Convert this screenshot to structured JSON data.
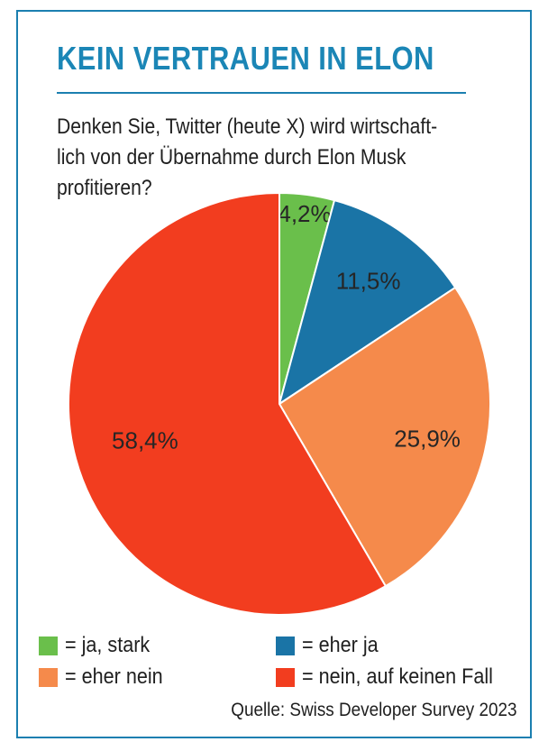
{
  "title": "KEIN VERTRAUEN IN ELON",
  "question": {
    "line1": "Denken Sie, Twitter (heute X) wird wirtschaft-",
    "line2": "lich von der Übernahme durch Elon Musk",
    "line3": "profitieren?"
  },
  "chart_data": {
    "type": "pie",
    "slices": [
      {
        "label": "ja, stark",
        "value": 4.2,
        "value_label": "4,2%",
        "color": "#6abf4b"
      },
      {
        "label": "eher ja",
        "value": 11.5,
        "value_label": "11,5%",
        "color": "#1a74a6"
      },
      {
        "label": "eher nein",
        "value": 25.9,
        "value_label": "25,9%",
        "color": "#f58a4b"
      },
      {
        "label": "nein, auf keinen Fall",
        "value": 58.4,
        "value_label": "58,4%",
        "color": "#f23d1f"
      }
    ],
    "start": "12 o'clock",
    "direction": "clockwise",
    "legend_position": "bottom"
  },
  "legend": {
    "items": [
      {
        "text": "= ja, stark"
      },
      {
        "text": "= eher ja"
      },
      {
        "text": "= eher nein"
      },
      {
        "text": "= nein, auf keinen Fall"
      }
    ]
  },
  "source": "Quelle: Swiss Developer Survey 2023",
  "colors": {
    "accent": "#1b86b6",
    "frame": "#1b7fb0"
  }
}
